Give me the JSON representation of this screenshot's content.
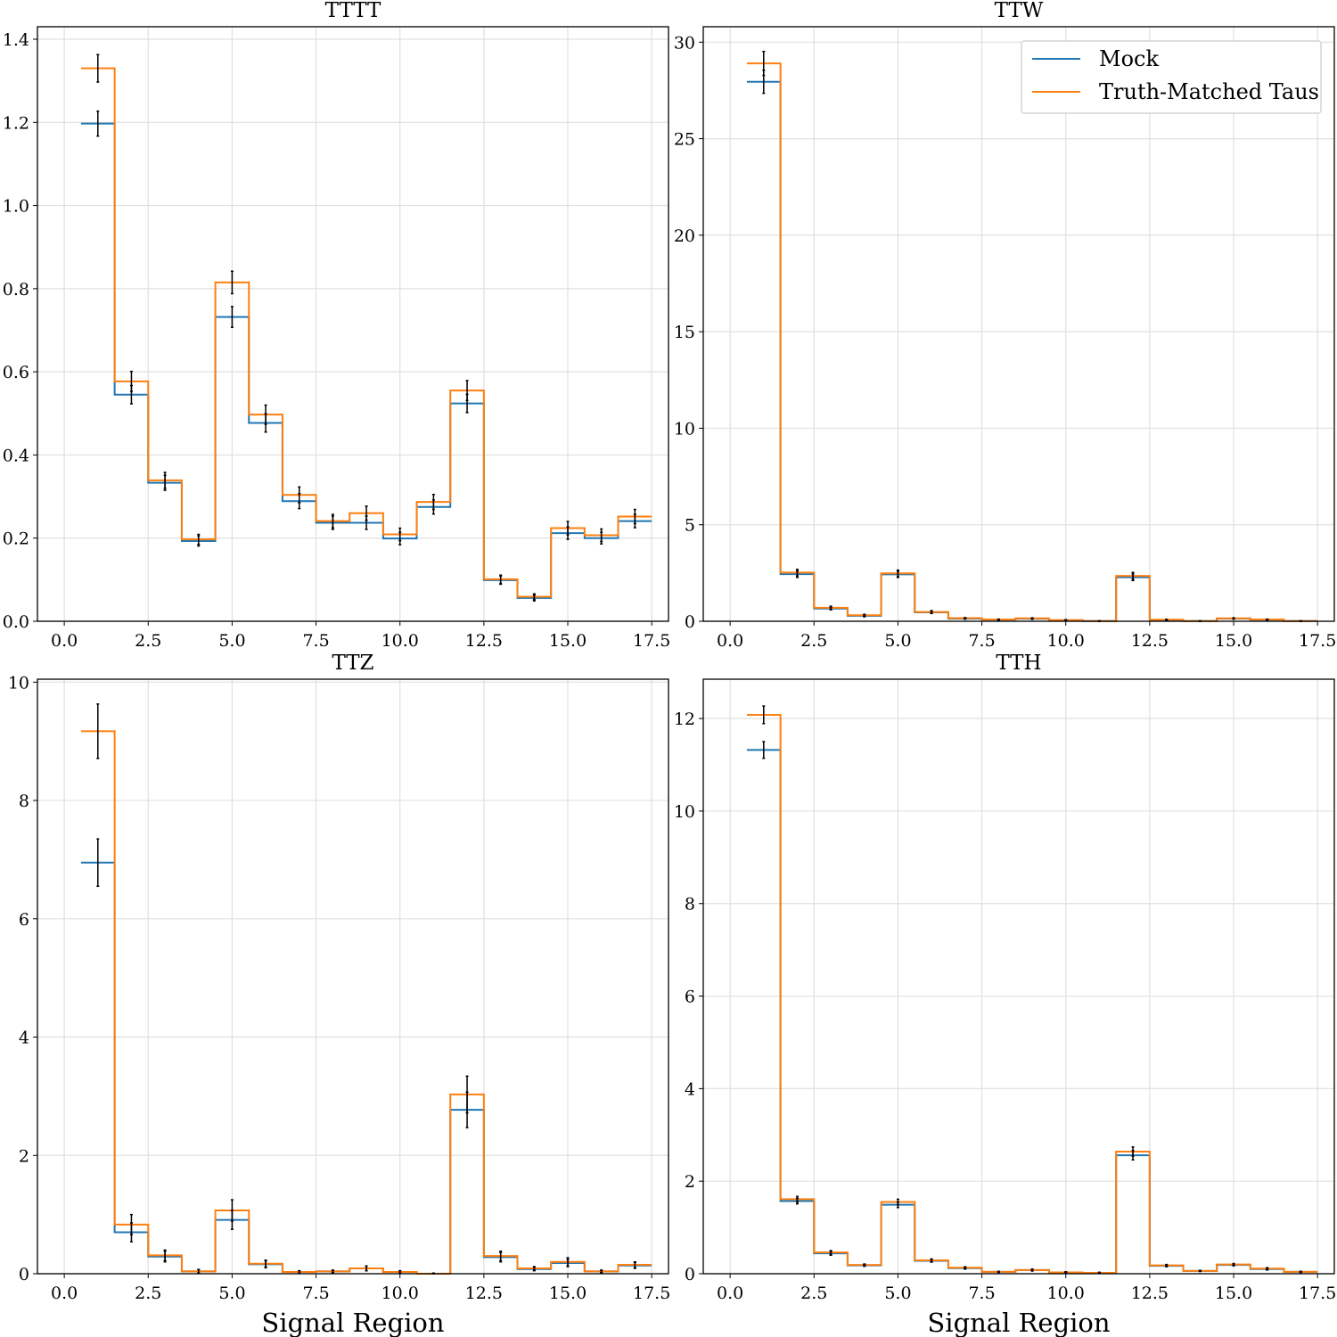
{
  "colors": {
    "mock": "#1f77b4",
    "truth": "#ff7f0e",
    "grid": "#e0e0e0",
    "errorbar": "#000000"
  },
  "legend": {
    "placement": "upper right of TTW panel",
    "entries": [
      "Mock",
      "Truth-Matched Taus"
    ]
  },
  "chart_data": [
    {
      "type": "step",
      "title": "TTTT",
      "xlabel": "",
      "ylabel": "",
      "xlim": [
        -0.8,
        18.0
      ],
      "ylim": [
        0,
        1.43
      ],
      "xticks": [
        "0.0",
        "2.5",
        "5.0",
        "7.5",
        "10.0",
        "12.5",
        "15.0",
        "17.5"
      ],
      "yticks": [
        "0.0",
        "0.2",
        "0.4",
        "0.6",
        "0.8",
        "1.0",
        "1.2",
        "1.4"
      ],
      "grid": true,
      "x": [
        1,
        2,
        3,
        4,
        5,
        6,
        7,
        8,
        9,
        10,
        11,
        12,
        13,
        14,
        15,
        16,
        17
      ],
      "series": [
        {
          "name": "Mock",
          "values": [
            1.197,
            0.545,
            0.333,
            0.193,
            0.732,
            0.477,
            0.289,
            0.237,
            0.237,
            0.199,
            0.275,
            0.524,
            0.099,
            0.056,
            0.212,
            0.2,
            0.241
          ],
          "errors": [
            0.03,
            0.022,
            0.018,
            0.012,
            0.025,
            0.022,
            0.018,
            0.016,
            0.016,
            0.015,
            0.017,
            0.022,
            0.01,
            0.007,
            0.015,
            0.014,
            0.016
          ]
        },
        {
          "name": "Truth-Matched Taus",
          "values": [
            1.33,
            0.577,
            0.339,
            0.197,
            0.815,
            0.497,
            0.304,
            0.241,
            0.26,
            0.209,
            0.287,
            0.555,
            0.101,
            0.059,
            0.224,
            0.207,
            0.252
          ],
          "errors": [
            0.033,
            0.024,
            0.019,
            0.012,
            0.027,
            0.023,
            0.019,
            0.016,
            0.017,
            0.015,
            0.018,
            0.024,
            0.01,
            0.007,
            0.016,
            0.015,
            0.017
          ]
        }
      ]
    },
    {
      "type": "step",
      "title": "TTW",
      "xlabel": "",
      "ylabel": "",
      "xlim": [
        -0.8,
        18.0
      ],
      "ylim": [
        0,
        30.8
      ],
      "xticks": [
        "0.0",
        "2.5",
        "5.0",
        "7.5",
        "10.0",
        "12.5",
        "15.0",
        "17.5"
      ],
      "yticks": [
        "0",
        "5",
        "10",
        "15",
        "20",
        "25",
        "30"
      ],
      "grid": true,
      "x": [
        1,
        2,
        3,
        4,
        5,
        6,
        7,
        8,
        9,
        10,
        11,
        12,
        13,
        14,
        15,
        16,
        17
      ],
      "series": [
        {
          "name": "Mock",
          "values": [
            27.95,
            2.44,
            0.66,
            0.28,
            2.43,
            0.46,
            0.14,
            0.08,
            0.13,
            0.05,
            0.01,
            2.28,
            0.07,
            0.01,
            0.14,
            0.08,
            0.01
          ],
          "errors": [
            0.6,
            0.17,
            0.07,
            0.05,
            0.16,
            0.06,
            0.03,
            0.02,
            0.03,
            0.02,
            0.01,
            0.17,
            0.02,
            0.01,
            0.03,
            0.02,
            0.01
          ]
        },
        {
          "name": "Truth-Matched Taus",
          "values": [
            28.9,
            2.52,
            0.7,
            0.31,
            2.48,
            0.48,
            0.16,
            0.09,
            0.15,
            0.06,
            0.01,
            2.35,
            0.08,
            0.01,
            0.15,
            0.09,
            0.01
          ],
          "errors": [
            0.62,
            0.17,
            0.08,
            0.05,
            0.17,
            0.07,
            0.03,
            0.02,
            0.03,
            0.02,
            0.01,
            0.18,
            0.02,
            0.01,
            0.03,
            0.02,
            0.01
          ]
        }
      ]
    },
    {
      "type": "step",
      "title": "TTZ",
      "xlabel": "Signal Region",
      "ylabel": "",
      "xlim": [
        -0.8,
        18.0
      ],
      "ylim": [
        0,
        10.05
      ],
      "xticks": [
        "0.0",
        "2.5",
        "5.0",
        "7.5",
        "10.0",
        "12.5",
        "15.0",
        "17.5"
      ],
      "yticks": [
        "0",
        "2",
        "4",
        "6",
        "8",
        "10"
      ],
      "grid": true,
      "x": [
        1,
        2,
        3,
        4,
        5,
        6,
        7,
        8,
        9,
        10,
        11,
        12,
        13,
        14,
        15,
        16,
        17
      ],
      "series": [
        {
          "name": "Mock",
          "values": [
            6.95,
            0.7,
            0.29,
            0.04,
            0.91,
            0.16,
            0.03,
            0.04,
            0.09,
            0.03,
            0.0,
            2.77,
            0.28,
            0.08,
            0.18,
            0.04,
            0.14
          ],
          "errors": [
            0.4,
            0.16,
            0.09,
            0.03,
            0.16,
            0.06,
            0.02,
            0.02,
            0.04,
            0.02,
            0.01,
            0.3,
            0.08,
            0.03,
            0.06,
            0.02,
            0.05
          ]
        },
        {
          "name": "Truth-Matched Taus",
          "values": [
            9.17,
            0.83,
            0.31,
            0.04,
            1.07,
            0.17,
            0.03,
            0.04,
            0.09,
            0.03,
            0.0,
            3.03,
            0.3,
            0.09,
            0.2,
            0.04,
            0.15
          ],
          "errors": [
            0.46,
            0.17,
            0.09,
            0.03,
            0.18,
            0.06,
            0.02,
            0.02,
            0.04,
            0.02,
            0.01,
            0.31,
            0.08,
            0.03,
            0.07,
            0.02,
            0.05
          ]
        }
      ]
    },
    {
      "type": "step",
      "title": "TTH",
      "xlabel": "Signal Region",
      "ylabel": "",
      "xlim": [
        -0.8,
        18.0
      ],
      "ylim": [
        0,
        12.85
      ],
      "xticks": [
        "0.0",
        "2.5",
        "5.0",
        "7.5",
        "10.0",
        "12.5",
        "15.0",
        "17.5"
      ],
      "yticks": [
        "0",
        "2",
        "4",
        "6",
        "8",
        "10",
        "12"
      ],
      "grid": true,
      "x": [
        1,
        2,
        3,
        4,
        5,
        6,
        7,
        8,
        9,
        10,
        11,
        12,
        13,
        14,
        15,
        16,
        17
      ],
      "series": [
        {
          "name": "Mock",
          "values": [
            11.32,
            1.57,
            0.44,
            0.18,
            1.49,
            0.28,
            0.12,
            0.04,
            0.08,
            0.03,
            0.02,
            2.56,
            0.17,
            0.06,
            0.19,
            0.1,
            0.04
          ],
          "errors": [
            0.18,
            0.06,
            0.04,
            0.02,
            0.06,
            0.03,
            0.02,
            0.01,
            0.02,
            0.01,
            0.01,
            0.1,
            0.02,
            0.01,
            0.02,
            0.02,
            0.01
          ]
        },
        {
          "name": "Truth-Matched Taus",
          "values": [
            12.08,
            1.61,
            0.46,
            0.19,
            1.55,
            0.29,
            0.13,
            0.04,
            0.08,
            0.03,
            0.02,
            2.64,
            0.18,
            0.06,
            0.2,
            0.11,
            0.04
          ],
          "errors": [
            0.19,
            0.06,
            0.04,
            0.02,
            0.06,
            0.03,
            0.02,
            0.01,
            0.02,
            0.01,
            0.01,
            0.1,
            0.02,
            0.01,
            0.02,
            0.02,
            0.01
          ]
        }
      ]
    }
  ]
}
